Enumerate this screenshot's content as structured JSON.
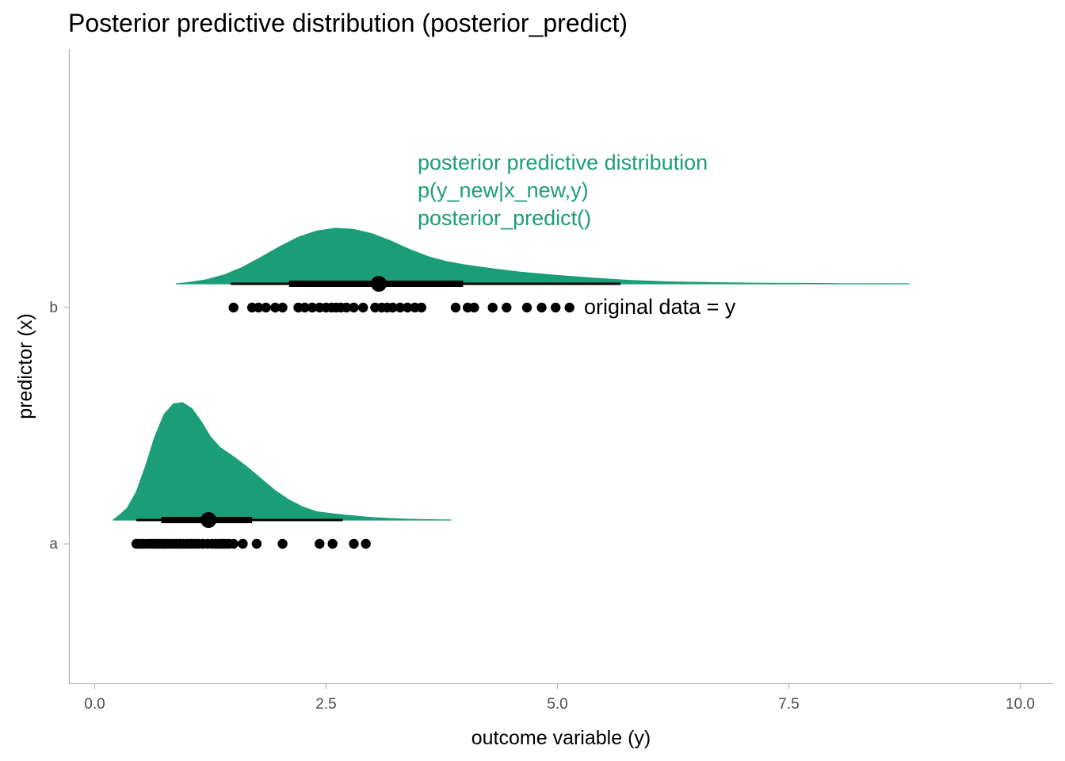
{
  "chart_data": {
    "type": "halfeye-dotplot",
    "title": "Posterior predictive distribution (posterior_predict)",
    "xlabel": "outcome variable (y)",
    "ylabel": "predictor (x)",
    "xlim": [
      -0.55,
      10.35
    ],
    "x_ticks": [
      0.0,
      2.5,
      5.0,
      7.5,
      10.0
    ],
    "x_tick_labels": [
      "0.0",
      "2.5",
      "5.0",
      "7.5",
      "10.0"
    ],
    "categories": [
      "a",
      "b"
    ],
    "grid": false,
    "colors": {
      "density": "#1b9e77",
      "interval": "#000000",
      "points": "#000000",
      "annotation": "#1b9e77"
    },
    "annotations": {
      "posterior_lines": [
        "posterior predictive distribution",
        "p(y_new|x_new,y)",
        "posterior_predict()"
      ],
      "data_label": "original data = y"
    },
    "groups": [
      {
        "category": "a",
        "density": {
          "x": [
            0.2,
            0.25,
            0.35,
            0.45,
            0.55,
            0.65,
            0.75,
            0.85,
            0.95,
            1.05,
            1.15,
            1.25,
            1.35,
            1.5,
            1.65,
            1.8,
            1.95,
            2.1,
            2.25,
            2.4,
            2.6,
            2.8,
            3.0,
            3.2,
            3.4,
            3.6,
            3.85
          ],
          "y": [
            0.0,
            0.03,
            0.1,
            0.24,
            0.46,
            0.71,
            0.9,
            0.99,
            1.0,
            0.95,
            0.84,
            0.71,
            0.62,
            0.54,
            0.45,
            0.35,
            0.25,
            0.17,
            0.11,
            0.07,
            0.05,
            0.035,
            0.02,
            0.012,
            0.006,
            0.003,
            0.0
          ]
        },
        "median": 1.23,
        "interval_66": [
          0.72,
          1.7
        ],
        "interval_95": [
          0.45,
          2.68
        ],
        "data_points": [
          0.45,
          0.48,
          0.52,
          0.56,
          0.6,
          0.63,
          0.66,
          0.7,
          0.73,
          0.76,
          0.8,
          0.84,
          0.88,
          0.92,
          0.96,
          1.0,
          1.04,
          1.08,
          1.12,
          1.17,
          1.22,
          1.27,
          1.31,
          1.35,
          1.38,
          1.41,
          1.45,
          1.5,
          1.6,
          1.75,
          2.03,
          2.43,
          2.57,
          2.8,
          2.93
        ]
      },
      {
        "category": "b",
        "density": {
          "x": [
            0.88,
            1.0,
            1.2,
            1.4,
            1.6,
            1.8,
            2.0,
            2.2,
            2.4,
            2.6,
            2.8,
            3.0,
            3.2,
            3.4,
            3.6,
            3.8,
            4.0,
            4.3,
            4.6,
            5.0,
            5.4,
            5.8,
            6.2,
            6.7,
            7.2,
            7.9,
            8.1,
            8.4,
            8.8
          ],
          "y": [
            0.0,
            0.02,
            0.07,
            0.16,
            0.3,
            0.48,
            0.67,
            0.84,
            0.95,
            1.0,
            0.98,
            0.9,
            0.77,
            0.62,
            0.49,
            0.4,
            0.34,
            0.27,
            0.21,
            0.15,
            0.1,
            0.06,
            0.035,
            0.02,
            0.01,
            0.005,
            0.0,
            0.003,
            0.0
          ]
        },
        "median": 3.07,
        "interval_66": [
          2.1,
          3.98
        ],
        "interval_95": [
          1.47,
          5.68
        ],
        "data_points": [
          1.5,
          1.7,
          1.77,
          1.85,
          1.95,
          2.03,
          2.2,
          2.27,
          2.35,
          2.43,
          2.5,
          2.56,
          2.61,
          2.66,
          2.72,
          2.8,
          2.9,
          3.03,
          3.1,
          3.16,
          3.22,
          3.3,
          3.38,
          3.46,
          3.53,
          3.9,
          4.03,
          4.1,
          4.3,
          4.45,
          4.67,
          4.83,
          4.98,
          5.13
        ]
      }
    ]
  }
}
